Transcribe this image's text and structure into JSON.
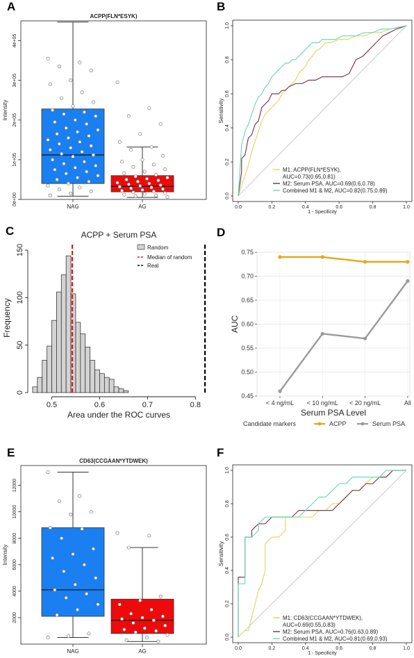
{
  "panels": {
    "A": "A",
    "B": "B",
    "C": "C",
    "D": "D",
    "E": "E",
    "F": "F"
  },
  "chart_data": [
    {
      "id": "A",
      "type": "box",
      "title": "ACPP(FLN*ESYK)",
      "ylabel": "Intensity",
      "ylim": [
        0,
        450000
      ],
      "yticks": [
        {
          "v": 0,
          "label": "0e+00"
        },
        {
          "v": 100000,
          "label": "1e+05"
        },
        {
          "v": 200000,
          "label": "2e+05"
        },
        {
          "v": 300000,
          "label": "3e+05"
        },
        {
          "v": 400000,
          "label": "4e+05"
        }
      ],
      "categories": [
        "NAG",
        "AG"
      ],
      "colors": [
        "#1a7ff0",
        "#ee0a0a"
      ],
      "boxes": [
        {
          "min": 8000,
          "q1": 40000,
          "median": 112000,
          "q3": 228000,
          "max": 447000
        },
        {
          "min": 5000,
          "q1": 19000,
          "median": 33000,
          "q3": 60000,
          "max": 132000
        }
      ],
      "points": [
        [
          355000,
          345000,
          335000,
          325000,
          300000,
          290000,
          270000,
          255000,
          245000,
          235000,
          225000,
          220000,
          215000,
          210000,
          200000,
          195000,
          190000,
          180000,
          175000,
          170000,
          165000,
          160000,
          155000,
          150000,
          145000,
          140000,
          135000,
          130000,
          125000,
          120000,
          115000,
          112000,
          108000,
          100000,
          95000,
          90000,
          85000,
          80000,
          75000,
          70000,
          65000,
          60000,
          55000,
          50000,
          45000,
          40000,
          35000,
          30000,
          25000,
          20000,
          15000,
          10000
        ],
        [
          295000,
          230000,
          210000,
          190000,
          165000,
          145000,
          132000,
          125000,
          110000,
          100000,
          95000,
          88000,
          82000,
          76000,
          70000,
          66000,
          62000,
          58000,
          55000,
          52000,
          50000,
          48000,
          45000,
          42000,
          40000,
          38000,
          36000,
          34000,
          32000,
          30000,
          28000,
          26000,
          24000,
          22000,
          20000,
          18000,
          16000,
          14000,
          12000,
          10000,
          8000,
          6000
        ]
      ]
    },
    {
      "id": "B",
      "type": "line",
      "xlabel": "1 - Specificity",
      "ylabel": "Sensitivity",
      "xlim": [
        0,
        1
      ],
      "ylim": [
        0,
        1
      ],
      "ticks": [
        0.0,
        0.2,
        0.4,
        0.6,
        0.8,
        1.0
      ],
      "tick_labels": [
        "0.0",
        "0.2",
        "0.4",
        "0.6",
        "0.8",
        "1.0"
      ],
      "series": [
        {
          "name": "M1: ACPP(FLN*ESYK),",
          "name2": "AUC=0.73(0.65,0.81)",
          "color": "#e6d66b",
          "x": [
            0,
            0.02,
            0.04,
            0.06,
            0.08,
            0.1,
            0.12,
            0.14,
            0.16,
            0.18,
            0.2,
            0.22,
            0.24,
            0.26,
            0.28,
            0.3,
            0.32,
            0.34,
            0.36,
            0.38,
            0.4,
            0.42,
            0.44,
            0.46,
            0.48,
            0.5,
            0.52,
            0.55,
            0.6,
            0.65,
            0.7,
            0.75,
            0.8,
            0.85,
            0.9,
            0.95,
            1.0
          ],
          "y": [
            0,
            0.06,
            0.12,
            0.18,
            0.26,
            0.32,
            0.38,
            0.44,
            0.48,
            0.5,
            0.52,
            0.54,
            0.56,
            0.6,
            0.62,
            0.64,
            0.66,
            0.68,
            0.72,
            0.74,
            0.76,
            0.8,
            0.82,
            0.85,
            0.86,
            0.88,
            0.9,
            0.9,
            0.92,
            0.92,
            0.94,
            0.94,
            0.96,
            0.96,
            0.98,
            0.99,
            1.0
          ]
        },
        {
          "name": "M2: Serum PSA, AUC=0.69(0.6,0.78)",
          "color": "#7b3f4e",
          "x": [
            0,
            0.02,
            0.02,
            0.04,
            0.06,
            0.08,
            0.1,
            0.12,
            0.14,
            0.16,
            0.18,
            0.2,
            0.22,
            0.24,
            0.26,
            0.28,
            0.3,
            0.34,
            0.38,
            0.42,
            0.46,
            0.5,
            0.54,
            0.58,
            0.62,
            0.66,
            0.7,
            0.74,
            0.78,
            0.82,
            0.86,
            0.9,
            0.94,
            1.0
          ],
          "y": [
            0,
            0.14,
            0.22,
            0.24,
            0.34,
            0.36,
            0.42,
            0.44,
            0.52,
            0.54,
            0.56,
            0.6,
            0.6,
            0.6,
            0.62,
            0.62,
            0.64,
            0.66,
            0.66,
            0.68,
            0.68,
            0.7,
            0.7,
            0.7,
            0.7,
            0.72,
            0.8,
            0.82,
            0.86,
            0.9,
            0.94,
            0.96,
            0.98,
            1.0
          ]
        },
        {
          "name": "Combined M1 & M2, AUC=0.82(0.75,0.89)",
          "color": "#6fd9bf",
          "x": [
            0,
            0.02,
            0.04,
            0.06,
            0.08,
            0.1,
            0.12,
            0.14,
            0.16,
            0.18,
            0.2,
            0.22,
            0.24,
            0.26,
            0.28,
            0.3,
            0.32,
            0.34,
            0.36,
            0.38,
            0.4,
            0.42,
            0.44,
            0.46,
            0.48,
            0.5,
            0.54,
            0.58,
            0.62,
            0.66,
            0.7,
            0.75,
            0.8,
            0.85,
            0.9,
            0.95,
            1.0
          ],
          "y": [
            0,
            0.3,
            0.38,
            0.42,
            0.48,
            0.54,
            0.58,
            0.6,
            0.64,
            0.66,
            0.7,
            0.72,
            0.74,
            0.76,
            0.78,
            0.78,
            0.8,
            0.8,
            0.82,
            0.84,
            0.86,
            0.88,
            0.9,
            0.9,
            0.9,
            0.92,
            0.92,
            0.92,
            0.94,
            0.94,
            0.94,
            0.96,
            0.96,
            0.98,
            0.98,
            0.99,
            1.0
          ]
        }
      ]
    },
    {
      "id": "C",
      "type": "bar",
      "title": "ACPP + Serum PSA",
      "xlabel": "Area under the ROC curves",
      "ylabel": "Frequency",
      "xlim": [
        0.45,
        0.83
      ],
      "ylim": [
        0,
        150
      ],
      "xticks": [
        0.5,
        0.6,
        0.7,
        0.8
      ],
      "xtick_labels": [
        "0.5",
        "0.6",
        "0.7",
        "0.8"
      ],
      "yticks": [
        0,
        50,
        100,
        150
      ],
      "ytick_labels": [
        "0",
        "50",
        "100",
        "150"
      ],
      "bin_start": 0.46,
      "bin_width": 0.01,
      "values": [
        6,
        16,
        34,
        49,
        76,
        106,
        124,
        144,
        104,
        74,
        62,
        48,
        34,
        24,
        20,
        16,
        14,
        6,
        4,
        2
      ],
      "median_random": 0.543,
      "real": 0.82,
      "legend": [
        "Random",
        "Median of random",
        "Real"
      ],
      "colors": {
        "bar": "#d3d3d3",
        "median": "#e11b1b",
        "real": "#000000"
      }
    },
    {
      "id": "D",
      "type": "line",
      "xlabel": "Serum PSA Level",
      "ylabel": "AUC",
      "categories": [
        "< 4 ng/mL",
        "< 10 ng/mL",
        "< 20 ng/mL",
        "All"
      ],
      "ylim": [
        0.45,
        0.75
      ],
      "yticks": [
        0.45,
        0.5,
        0.55,
        0.6,
        0.65,
        0.7,
        0.75
      ],
      "ytick_labels": [
        "0.45",
        "0.50",
        "0.55",
        "0.60",
        "0.65",
        "0.70",
        "0.75"
      ],
      "legend_title": "Candidate markers",
      "series": [
        {
          "name": "ACPP",
          "color": "#e6a514",
          "values": [
            0.74,
            0.74,
            0.73,
            0.73
          ]
        },
        {
          "name": "Serum PSA",
          "color": "#9a9a9a",
          "values": [
            0.46,
            0.58,
            0.57,
            0.69
          ]
        }
      ]
    },
    {
      "id": "E",
      "type": "box",
      "title": "CD63(CCGAAN*YTDWEK)",
      "ylabel": "Intensity",
      "ylim": [
        0,
        13500
      ],
      "yticks": [
        {
          "v": 2000,
          "label": "2000"
        },
        {
          "v": 4000,
          "label": "4000"
        },
        {
          "v": 6000,
          "label": "6000"
        },
        {
          "v": 8000,
          "label": "8000"
        },
        {
          "v": 10000,
          "label": "10000"
        },
        {
          "v": 12000,
          "label": "12000"
        }
      ],
      "categories": [
        "NAG",
        "AG"
      ],
      "colors": [
        "#1a7ff0",
        "#ee0a0a"
      ],
      "boxes": [
        {
          "min": 500,
          "q1": 2100,
          "median": 4100,
          "q3": 8800,
          "max": 13000
        },
        {
          "min": 200,
          "q1": 800,
          "median": 1800,
          "q3": 3400,
          "max": 7300
        }
      ],
      "points": [
        [
          13000,
          11200,
          10800,
          10000,
          9800,
          8800,
          8700,
          8000,
          7200,
          6800,
          6500,
          6000,
          5500,
          5000,
          4500,
          4100,
          3800,
          3500,
          3000,
          2600,
          2200,
          800,
          600,
          500
        ],
        [
          8400,
          8200,
          7300,
          3600,
          3300,
          3000,
          2600,
          2300,
          2100,
          2000,
          1900,
          1800,
          1600,
          1400,
          1200,
          1100,
          1000,
          900,
          700,
          500,
          300,
          200
        ]
      ]
    },
    {
      "id": "F",
      "type": "line",
      "xlabel": "1 - Specificity",
      "ylabel": "Sensitivity",
      "xlim": [
        0,
        1
      ],
      "ylim": [
        0,
        1
      ],
      "ticks": [
        0.0,
        0.2,
        0.4,
        0.6,
        0.8,
        1.0
      ],
      "tick_labels": [
        "0.0",
        "0.2",
        "0.4",
        "0.6",
        "0.8",
        "1.0"
      ],
      "series": [
        {
          "name": "M1: CD63(CCGAAN*YTDWEK),",
          "name2": "AUC=0.69(0.55,0.83)",
          "color": "#e6d66b",
          "x": [
            0,
            0.04,
            0.06,
            0.08,
            0.1,
            0.12,
            0.14,
            0.16,
            0.16,
            0.2,
            0.24,
            0.28,
            0.28,
            0.32,
            0.36,
            0.4,
            0.44,
            0.48,
            0.52,
            0.56,
            0.6,
            0.64,
            0.68,
            0.72,
            0.76,
            0.8,
            0.84,
            0.88,
            0.92,
            0.96,
            1.0
          ],
          "y": [
            0,
            0.04,
            0.04,
            0.12,
            0.2,
            0.28,
            0.32,
            0.4,
            0.56,
            0.6,
            0.6,
            0.64,
            0.72,
            0.72,
            0.72,
            0.72,
            0.72,
            0.76,
            0.76,
            0.8,
            0.8,
            0.84,
            0.88,
            0.88,
            0.92,
            0.96,
            0.96,
            0.96,
            1.0,
            1.0,
            1.0
          ]
        },
        {
          "name": "M2: Serum PSA, AUC=0.76(0.63,0.89)",
          "color": "#7b3f4e",
          "x": [
            0,
            0.0,
            0.04,
            0.04,
            0.08,
            0.08,
            0.12,
            0.16,
            0.2,
            0.24,
            0.28,
            0.32,
            0.36,
            0.4,
            0.44,
            0.48,
            0.52,
            0.56,
            0.6,
            0.64,
            0.68,
            0.72,
            0.76,
            0.8,
            0.84,
            0.88,
            0.92,
            0.96,
            1.0
          ],
          "y": [
            0,
            0.36,
            0.36,
            0.6,
            0.6,
            0.64,
            0.68,
            0.68,
            0.72,
            0.72,
            0.72,
            0.72,
            0.76,
            0.76,
            0.76,
            0.76,
            0.76,
            0.76,
            0.8,
            0.84,
            0.88,
            0.88,
            0.92,
            0.92,
            0.96,
            0.96,
            1.0,
            1.0,
            1.0
          ]
        },
        {
          "name": "Combined M1 & M2, AUC=0.81(0.69,0.93)",
          "color": "#6fd9bf",
          "x": [
            0,
            0.0,
            0.04,
            0.04,
            0.08,
            0.12,
            0.12,
            0.16,
            0.2,
            0.24,
            0.28,
            0.32,
            0.36,
            0.4,
            0.44,
            0.48,
            0.52,
            0.56,
            0.6,
            0.64,
            0.68,
            0.72,
            0.76,
            0.8,
            0.84,
            0.88,
            0.92,
            0.96,
            1.0
          ],
          "y": [
            0,
            0.32,
            0.32,
            0.6,
            0.6,
            0.64,
            0.68,
            0.72,
            0.72,
            0.72,
            0.72,
            0.72,
            0.72,
            0.76,
            0.8,
            0.84,
            0.84,
            0.88,
            0.92,
            0.92,
            0.96,
            0.96,
            0.96,
            0.96,
            0.96,
            1.0,
            1.0,
            1.0,
            1.0
          ]
        }
      ]
    }
  ]
}
